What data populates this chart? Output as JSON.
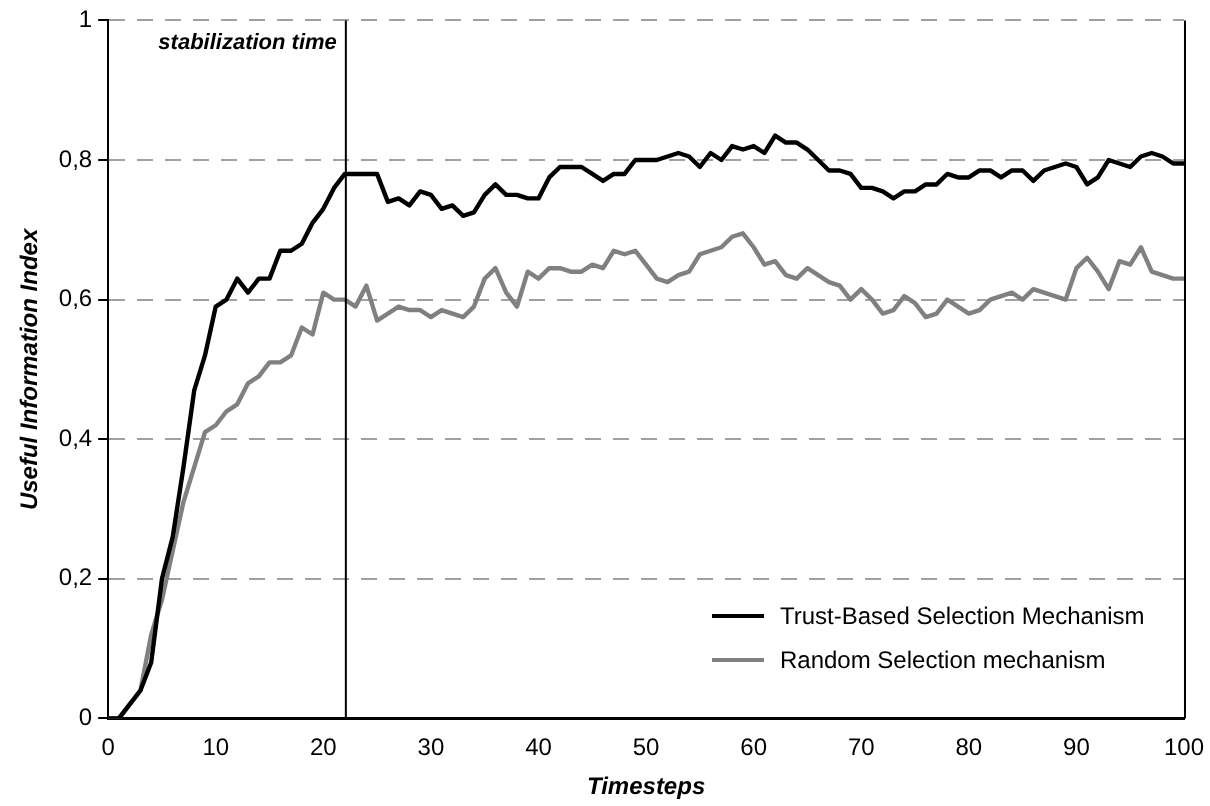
{
  "chart_data": {
    "type": "line",
    "xlabel": "Timesteps",
    "ylabel": "Useful Information Index",
    "x": [
      0,
      1,
      2,
      3,
      4,
      5,
      6,
      7,
      8,
      9,
      10,
      11,
      12,
      13,
      14,
      15,
      16,
      17,
      18,
      19,
      20,
      21,
      22,
      23,
      24,
      25,
      26,
      27,
      28,
      29,
      30,
      31,
      32,
      33,
      34,
      35,
      36,
      37,
      38,
      39,
      40,
      41,
      42,
      43,
      44,
      45,
      46,
      47,
      48,
      49,
      50,
      51,
      52,
      53,
      54,
      55,
      56,
      57,
      58,
      59,
      60,
      61,
      62,
      63,
      64,
      65,
      66,
      67,
      68,
      69,
      70,
      71,
      72,
      73,
      74,
      75,
      76,
      77,
      78,
      79,
      80,
      81,
      82,
      83,
      84,
      85,
      86,
      87,
      88,
      89,
      90,
      91,
      92,
      93,
      94,
      95,
      96,
      97,
      98,
      99,
      100
    ],
    "series": [
      {
        "name": "Trust-Based Selection Mechanism",
        "color": "#000000",
        "values": [
          0,
          0,
          0.02,
          0.04,
          0.08,
          0.2,
          0.26,
          0.36,
          0.47,
          0.52,
          0.59,
          0.6,
          0.63,
          0.61,
          0.63,
          0.63,
          0.67,
          0.67,
          0.68,
          0.71,
          0.73,
          0.76,
          0.78,
          0.78,
          0.78,
          0.78,
          0.74,
          0.745,
          0.735,
          0.755,
          0.75,
          0.73,
          0.735,
          0.72,
          0.725,
          0.75,
          0.765,
          0.75,
          0.75,
          0.745,
          0.745,
          0.775,
          0.79,
          0.79,
          0.79,
          0.78,
          0.77,
          0.78,
          0.78,
          0.8,
          0.8,
          0.8,
          0.805,
          0.81,
          0.805,
          0.79,
          0.81,
          0.8,
          0.82,
          0.815,
          0.82,
          0.81,
          0.835,
          0.825,
          0.825,
          0.815,
          0.8,
          0.785,
          0.785,
          0.78,
          0.76,
          0.76,
          0.755,
          0.745,
          0.755,
          0.755,
          0.765,
          0.765,
          0.78,
          0.775,
          0.775,
          0.785,
          0.785,
          0.775,
          0.785,
          0.785,
          0.77,
          0.785,
          0.79,
          0.795,
          0.79,
          0.765,
          0.775,
          0.8,
          0.795,
          0.79,
          0.805,
          0.81,
          0.805,
          0.795,
          0.795
        ]
      },
      {
        "name": "Random Selection mechanism",
        "color": "#808080",
        "values": [
          0,
          0,
          0.02,
          0.04,
          0.12,
          0.17,
          0.24,
          0.31,
          0.36,
          0.41,
          0.42,
          0.44,
          0.45,
          0.48,
          0.49,
          0.51,
          0.51,
          0.52,
          0.56,
          0.55,
          0.61,
          0.6,
          0.6,
          0.59,
          0.62,
          0.57,
          0.58,
          0.59,
          0.585,
          0.585,
          0.575,
          0.585,
          0.58,
          0.575,
          0.59,
          0.63,
          0.645,
          0.61,
          0.59,
          0.64,
          0.63,
          0.645,
          0.645,
          0.64,
          0.64,
          0.65,
          0.645,
          0.67,
          0.665,
          0.67,
          0.65,
          0.63,
          0.625,
          0.635,
          0.64,
          0.665,
          0.67,
          0.675,
          0.69,
          0.695,
          0.675,
          0.65,
          0.655,
          0.635,
          0.63,
          0.645,
          0.635,
          0.625,
          0.62,
          0.6,
          0.615,
          0.6,
          0.58,
          0.585,
          0.605,
          0.595,
          0.575,
          0.58,
          0.6,
          0.59,
          0.58,
          0.585,
          0.6,
          0.605,
          0.61,
          0.6,
          0.615,
          0.61,
          0.605,
          0.6,
          0.645,
          0.66,
          0.64,
          0.615,
          0.655,
          0.65,
          0.675,
          0.64,
          0.635,
          0.63,
          0.63
        ]
      }
    ],
    "xlim": [
      0,
      100
    ],
    "xticks": [
      0,
      10,
      20,
      30,
      40,
      50,
      60,
      70,
      80,
      90,
      100
    ],
    "ylim": [
      0,
      1
    ],
    "yticks": [
      0,
      {
        "value": 0.2,
        "label": "0,2"
      },
      {
        "value": 0.4,
        "label": "0,4"
      },
      {
        "value": 0.6,
        "label": "0,6"
      },
      {
        "value": 0.8,
        "label": "0,8"
      },
      1
    ],
    "ref_lines": [
      {
        "axis": "x",
        "value": 22,
        "label": "stabilization time",
        "color": "#000000"
      }
    ],
    "grid": "y",
    "legend": "bottom right",
    "marker": "none",
    "line_style": "solid"
  }
}
